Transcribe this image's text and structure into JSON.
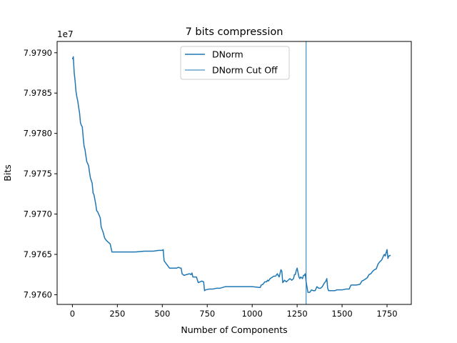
{
  "chart_data": {
    "type": "line",
    "title": "7 bits compression",
    "xlabel": "Number of Components",
    "ylabel": "Bits",
    "y_offset_label": "1e7",
    "xlim": [
      -85,
      1885
    ],
    "ylim": [
      79758800,
      79791400
    ],
    "x_ticks": [
      0,
      250,
      500,
      750,
      1000,
      1250,
      1500,
      1750
    ],
    "x_tick_labels": [
      "0",
      "250",
      "500",
      "750",
      "1000",
      "1250",
      "1500",
      "1750"
    ],
    "y_ticks": [
      79760000,
      79765000,
      79770000,
      79775000,
      79780000,
      79785000,
      79790000
    ],
    "y_tick_labels": [
      "7.9760",
      "7.9765",
      "7.9770",
      "7.9775",
      "7.9780",
      "7.9785",
      "7.9790"
    ],
    "grid": false,
    "legend_position": "upper center",
    "series": [
      {
        "name": "DNorm",
        "color": "#1f77b4",
        "x": [
          0,
          5,
          10,
          15,
          20,
          25,
          30,
          35,
          40,
          45,
          50,
          55,
          60,
          65,
          70,
          75,
          80,
          90,
          95,
          100,
          110,
          115,
          120,
          130,
          135,
          140,
          150,
          155,
          160,
          170,
          180,
          190,
          200,
          205,
          210,
          220,
          225,
          230,
          240,
          300,
          350,
          400,
          405,
          450,
          480,
          500,
          505,
          510,
          540,
          580,
          590,
          600,
          605,
          610,
          620,
          650,
          660,
          665,
          670,
          690,
          700,
          710,
          720,
          730,
          735,
          740,
          760,
          780,
          800,
          820,
          850,
          870,
          880,
          900,
          950,
          1000,
          1040,
          1045,
          1050,
          1060,
          1070,
          1080,
          1085,
          1090,
          1100,
          1120,
          1130,
          1140,
          1150,
          1160,
          1165,
          1170,
          1180,
          1190,
          1200,
          1210,
          1220,
          1230,
          1235,
          1240,
          1245,
          1250,
          1260,
          1265,
          1270,
          1280,
          1285,
          1290,
          1295,
          1300,
          1310,
          1320,
          1330,
          1340,
          1350,
          1360,
          1370,
          1380,
          1390,
          1400,
          1410,
          1415,
          1420,
          1425,
          1430,
          1440,
          1450,
          1460,
          1470,
          1480,
          1500,
          1520,
          1540,
          1545,
          1550,
          1560,
          1580,
          1600,
          1610,
          1620,
          1640,
          1650,
          1660,
          1670,
          1680,
          1690,
          1700,
          1710,
          1720,
          1730,
          1735,
          1740,
          1745,
          1750,
          1755,
          1760,
          1770
        ],
        "values": [
          79789200,
          79789500,
          79787500,
          79786500,
          79785200,
          79784500,
          79784000,
          79783200,
          79782500,
          79781300,
          79781000,
          79780800,
          79779500,
          79778400,
          79778000,
          79777200,
          79776500,
          79776000,
          79775200,
          79774500,
          79773800,
          79772600,
          79772400,
          79771200,
          79770400,
          79770300,
          79769800,
          79769500,
          79768400,
          79767800,
          79767000,
          79766700,
          79766500,
          79766400,
          79766300,
          79765300,
          79765300,
          79765300,
          79765300,
          79765300,
          79765300,
          79765400,
          79765400,
          79765400,
          79765500,
          79765500,
          79765600,
          79764200,
          79763300,
          79763300,
          79763400,
          79763300,
          79763300,
          79762600,
          79762400,
          79762600,
          79762500,
          79762700,
          79762200,
          79762200,
          79761500,
          79761600,
          79761700,
          79761600,
          79760500,
          79760600,
          79760700,
          79760700,
          79760800,
          79760800,
          79761000,
          79761000,
          79761000,
          79761000,
          79761000,
          79761000,
          79760900,
          79760900,
          79761200,
          79761300,
          79761600,
          79761600,
          79761800,
          79761700,
          79762000,
          79762300,
          79762300,
          79762600,
          79762200,
          79763100,
          79762900,
          79761500,
          79761800,
          79761600,
          79761800,
          79762000,
          79761800,
          79762000,
          79762500,
          79762500,
          79763000,
          79763300,
          79762200,
          79762000,
          79762200,
          79762000,
          79762400,
          79762400,
          79762600,
          79761600,
          79760300,
          79760300,
          79760600,
          79760500,
          79760500,
          79761000,
          79760800,
          79760800,
          79761000,
          79761400,
          79761700,
          79762000,
          79760800,
          79760500,
          79760500,
          79760500,
          79760500,
          79760500,
          79760600,
          79760600,
          79760600,
          79760700,
          79760700,
          79761000,
          79761200,
          79761200,
          79761200,
          79761300,
          79761700,
          79761800,
          79762100,
          79762500,
          79762600,
          79762900,
          79763100,
          79763200,
          79763800,
          79764100,
          79764300,
          79764800,
          79765000,
          79764800,
          79765200,
          79765600,
          79764500,
          79764800,
          79764900
        ]
      },
      {
        "name": "DNorm Cut Off",
        "color": "#1f77b4",
        "type": "vline",
        "x": 1300
      }
    ]
  }
}
